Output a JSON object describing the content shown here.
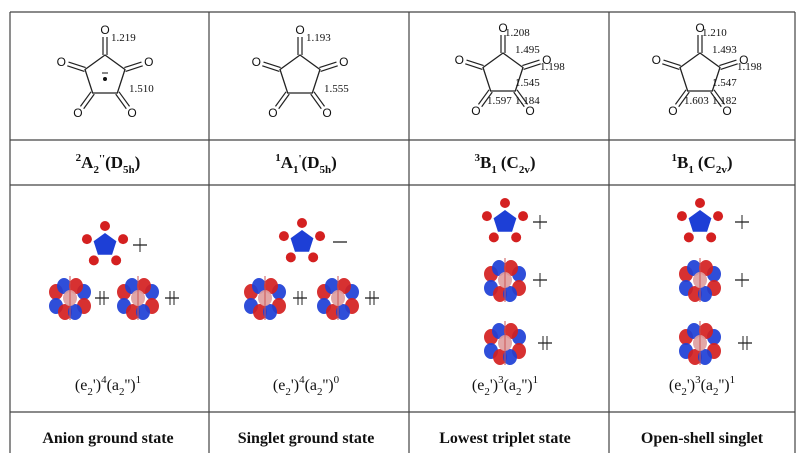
{
  "columns": [
    {
      "bonds": [
        "1.219",
        "1.510"
      ],
      "term": {
        "multiplicity": "2",
        "label": "A",
        "label_sub": "2",
        "prime": "''",
        "group": "(D",
        "group_sub": "5h",
        "close": ")"
      },
      "config": [
        {
          "orb": "(e",
          "sub": "2",
          "prime": "')",
          "occ": "4"
        },
        {
          "orb": "(a",
          "sub": "2",
          "prime": "'')",
          "occ": "1"
        }
      ],
      "description": "Anion ground state"
    },
    {
      "bonds": [
        "1.193",
        "1.555"
      ],
      "term": {
        "multiplicity": "1",
        "label": "A",
        "label_sub": "1",
        "prime": "'",
        "group": "(D",
        "group_sub": "5h",
        "close": ")"
      },
      "config": [
        {
          "orb": "(e",
          "sub": "2",
          "prime": "')",
          "occ": "4"
        },
        {
          "orb": "(a",
          "sub": "2",
          "prime": "'')",
          "occ": "0"
        }
      ],
      "description": "Singlet ground state"
    },
    {
      "bonds": [
        "1.208",
        "1.495",
        "1.198",
        "1.545",
        "1.597",
        "1.184"
      ],
      "term": {
        "multiplicity": "3",
        "label": "B",
        "label_sub": "1",
        "group": "(C",
        "group_sub": "2v",
        "close": ")"
      },
      "config": [
        {
          "orb": "(e",
          "sub": "2",
          "prime": "')",
          "occ": "3"
        },
        {
          "orb": "(a",
          "sub": "2",
          "prime": "'')",
          "occ": "1"
        }
      ],
      "description": "Lowest triplet state"
    },
    {
      "bonds": [
        "1.210",
        "1.493",
        "1.198",
        "1.547",
        "1.603",
        "1.182"
      ],
      "term": {
        "multiplicity": "1",
        "label": "B",
        "label_sub": "1",
        "group": "(C",
        "group_sub": "2v",
        "close": ")"
      },
      "config": [
        {
          "orb": "(e",
          "sub": "2",
          "prime": "')",
          "occ": "3"
        },
        {
          "orb": "(a",
          "sub": "2",
          "prime": "'')",
          "occ": "1"
        }
      ],
      "description": "Open-shell singlet"
    }
  ]
}
